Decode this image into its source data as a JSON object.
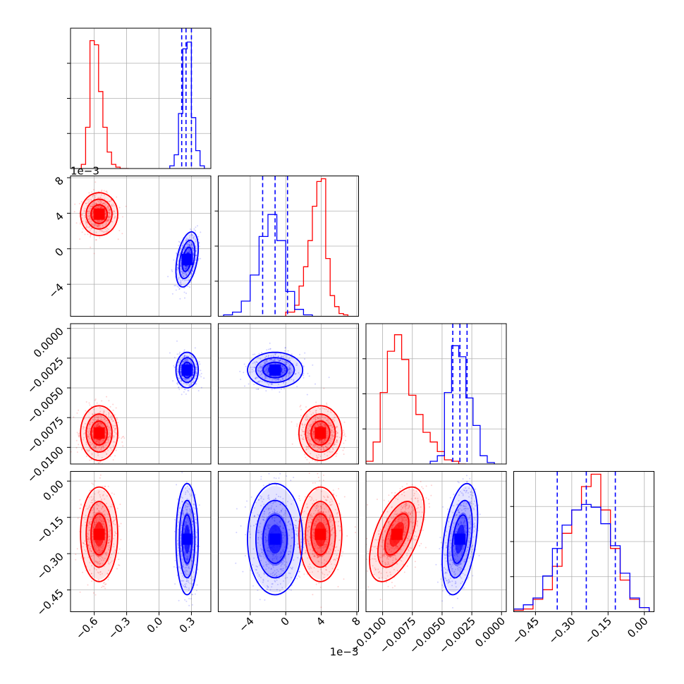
{
  "chart_data": {
    "type": "corner",
    "parameters": [
      {
        "ticks": [
          -0.6,
          -0.3,
          0.0,
          0.3
        ],
        "tick_labels": [
          "−0.6",
          "−0.3",
          "0.0",
          "0.3"
        ],
        "range": [
          -0.82,
          0.48
        ]
      },
      {
        "ticks": [
          -4,
          0,
          4,
          8
        ],
        "tick_labels": [
          "−4",
          "0",
          "4",
          "8"
        ],
        "range": [
          -7.6,
          8.2
        ],
        "offset_label": "1e−3"
      },
      {
        "ticks": [
          -0.01,
          -0.0075,
          -0.005,
          -0.0025,
          0.0
        ],
        "tick_labels": [
          "−0.0100",
          "−0.0075",
          "−0.0050",
          "−0.0025",
          "0.0000"
        ],
        "range": [
          -0.0114,
          0.0004
        ]
      },
      {
        "ticks": [
          -0.45,
          -0.3,
          -0.15,
          0.0
        ],
        "tick_labels": [
          "−0.45",
          "−0.30",
          "−0.15",
          "0.00"
        ],
        "range": [
          -0.54,
          0.04
        ]
      }
    ],
    "series": [
      {
        "color": "#ff0000",
        "means": [
          -0.555,
          3.9,
          -0.0088,
          -0.22
        ],
        "stds": [
          0.075,
          1.05,
          0.001,
          0.085
        ],
        "corr": [
          [
            1,
            0,
            0,
            0
          ],
          [
            0,
            1,
            0,
            0
          ],
          [
            0,
            0,
            1,
            0.55
          ],
          [
            0,
            0,
            0.55,
            1
          ]
        ],
        "histograms": [
          {
            "bins": [
              -0.72,
              -0.68,
              -0.64,
              -0.6,
              -0.56,
              -0.52,
              -0.48,
              -0.44,
              -0.4,
              -0.36,
              -0.32,
              -0.28
            ],
            "counts": [
              0.03,
              0.3,
              0.93,
              0.9,
              0.56,
              0.3,
              0.12,
              0.03,
              0.01,
              0,
              0
            ]
          },
          {
            "bins": [
              0.0,
              1.0,
              1.5,
              2.0,
              2.5,
              3.0,
              3.5,
              4.0,
              4.5,
              5.0,
              5.5,
              6.0,
              6.5,
              7.0
            ],
            "counts": [
              0.03,
              0.08,
              0.22,
              0.36,
              0.55,
              0.8,
              0.98,
              1.0,
              0.42,
              0.15,
              0.07,
              0.02,
              0.01
            ]
          },
          {
            "bins": [
              -0.0114,
              -0.0108,
              -0.0102,
              -0.0096,
              -0.009,
              -0.0084,
              -0.0078,
              -0.0072,
              -0.0066,
              -0.006,
              -0.0054,
              -0.0048,
              -0.0042,
              -0.0036,
              -0.003
            ],
            "counts": [
              0.02,
              0.16,
              0.52,
              0.82,
              0.94,
              0.76,
              0.5,
              0.36,
              0.23,
              0.16,
              0.09,
              0.03,
              0.02,
              0.0
            ]
          },
          {
            "bins": [
              -0.54,
              -0.5,
              -0.46,
              -0.42,
              -0.38,
              -0.34,
              -0.3,
              -0.26,
              -0.22,
              -0.18,
              -0.14,
              -0.1,
              -0.06,
              -0.02,
              0.02
            ],
            "counts": [
              0.01,
              0.02,
              0.09,
              0.16,
              0.33,
              0.57,
              0.74,
              0.91,
              1.0,
              0.74,
              0.46,
              0.23,
              0.09,
              0.03
            ]
          }
        ]
      },
      {
        "color": "#0000ff",
        "means": [
          0.26,
          -1.2,
          -0.0035,
          -0.24
        ],
        "stds": [
          0.045,
          1.35,
          0.00065,
          0.1
        ],
        "corr": [
          [
            1,
            0.4,
            0,
            0
          ],
          [
            0.4,
            1,
            0,
            0
          ],
          [
            0,
            0,
            1,
            0.4
          ],
          [
            0,
            0,
            0.4,
            1
          ]
        ],
        "histograms": [
          {
            "bins": [
              0.1,
              0.14,
              0.18,
              0.22,
              0.26,
              0.3,
              0.34,
              0.38,
              0.42
            ],
            "counts": [
              0.02,
              0.1,
              0.4,
              0.87,
              0.92,
              0.37,
              0.13,
              0.02
            ]
          },
          {
            "bins": [
              -7.0,
              -6.0,
              -5.0,
              -4.0,
              -3.0,
              -2.0,
              -1.0,
              0.0,
              1.0,
              2.0,
              3.0
            ],
            "counts": [
              0.01,
              0.03,
              0.11,
              0.3,
              0.58,
              0.74,
              0.55,
              0.18,
              0.05,
              0.01
            ]
          },
          {
            "bins": [
              -0.006,
              -0.0054,
              -0.0048,
              -0.0042,
              -0.0036,
              -0.003,
              -0.0024,
              -0.0018,
              -0.0012,
              -0.0006
            ],
            "counts": [
              0.02,
              0.06,
              0.52,
              0.86,
              0.78,
              0.48,
              0.28,
              0.06,
              0.01
            ]
          },
          {
            "bins": [
              -0.54,
              -0.5,
              -0.46,
              -0.42,
              -0.38,
              -0.34,
              -0.3,
              -0.26,
              -0.22,
              -0.18,
              -0.14,
              -0.1,
              -0.06,
              -0.02,
              0.02
            ],
            "counts": [
              0.02,
              0.05,
              0.1,
              0.26,
              0.46,
              0.63,
              0.74,
              0.78,
              0.76,
              0.64,
              0.48,
              0.28,
              0.1,
              0.03
            ]
          }
        ],
        "quantile_lines": [
          [
            0.21,
            0.25,
            0.3
          ],
          [
            -2.6,
            -1.2,
            0.2
          ],
          [
            -0.0041,
            -0.0035,
            -0.0029
          ],
          [
            -0.36,
            -0.24,
            -0.12
          ]
        ]
      }
    ],
    "grid": true
  }
}
